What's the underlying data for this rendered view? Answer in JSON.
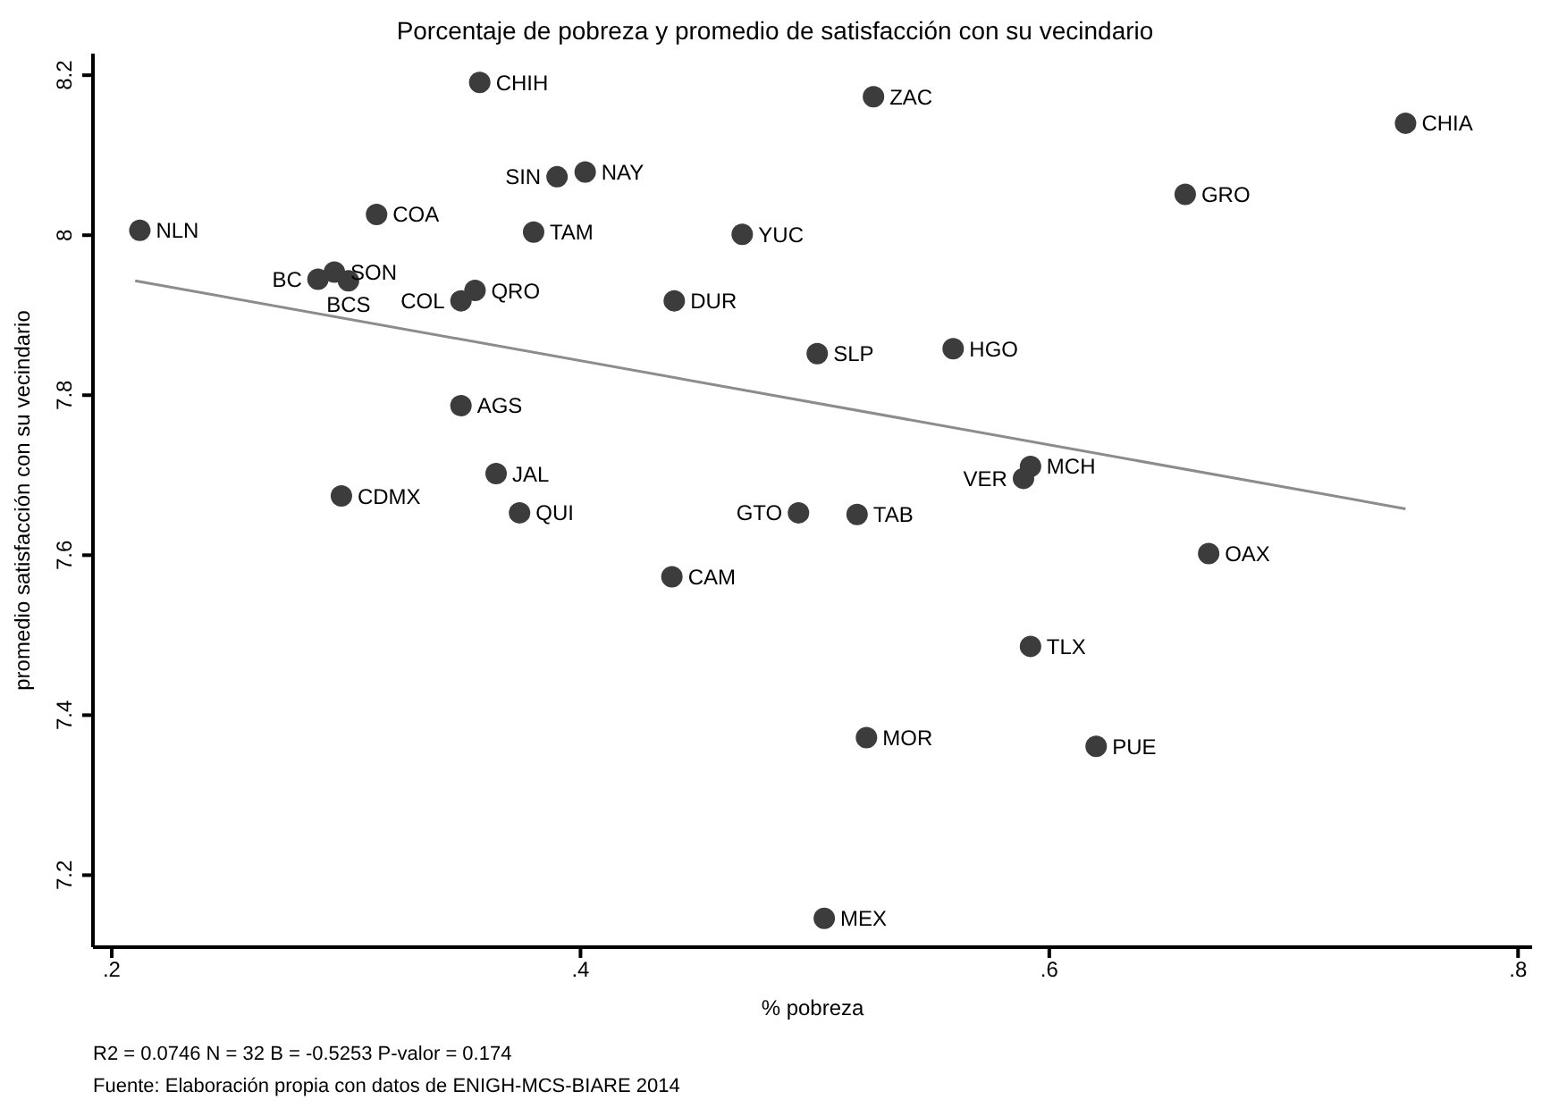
{
  "chart_data": {
    "type": "scatter",
    "title": "Porcentaje de pobreza y promedio de satisfacción con su vecindario",
    "xlabel": "% pobreza",
    "ylabel": "promedio satisfacción con su vecindario",
    "xlim": [
      0.192,
      0.806
    ],
    "xticks": [
      {
        "value": 0.2,
        "label": ".2"
      },
      {
        "value": 0.4,
        "label": ".4"
      },
      {
        "value": 0.6,
        "label": ".6"
      },
      {
        "value": 0.8,
        "label": ".8"
      }
    ],
    "ylim": [
      7.11,
      8.227
    ],
    "yticks": [
      7.2,
      7.4,
      7.6,
      7.8,
      8,
      8.2
    ],
    "grid": false,
    "legend": false,
    "series": [
      {
        "marker": "circle",
        "color": "#3c3c3c",
        "x": [
          0.357,
          0.525,
          0.752,
          0.402,
          0.39,
          0.658,
          0.212,
          0.313,
          0.38,
          0.469,
          0.295,
          0.288,
          0.301,
          0.355,
          0.349,
          0.44,
          0.501,
          0.559,
          0.349,
          0.364,
          0.592,
          0.589,
          0.298,
          0.374,
          0.493,
          0.518,
          0.668,
          0.439,
          0.592,
          0.522,
          0.62,
          0.504
        ],
        "values": [
          8.191,
          8.173,
          8.14,
          8.079,
          8.073,
          8.051,
          8.006,
          8.026,
          8.004,
          8.001,
          7.954,
          7.945,
          7.943,
          7.931,
          7.918,
          7.918,
          7.852,
          7.858,
          7.787,
          7.702,
          7.711,
          7.696,
          7.674,
          7.653,
          7.653,
          7.651,
          7.602,
          7.573,
          7.486,
          7.372,
          7.361,
          7.146
        ]
      },
      {
        "type": "line",
        "marker": "none",
        "color": "#8c8c8c",
        "x": [
          0.21,
          0.752
        ],
        "values": [
          7.943,
          7.658
        ]
      }
    ],
    "annotations": [
      {
        "text": "CHIH",
        "x": 0.357,
        "y": 8.191
      },
      {
        "text": "ZAC",
        "x": 0.525,
        "y": 8.173
      },
      {
        "text": "CHIA",
        "x": 0.752,
        "y": 8.14
      },
      {
        "text": "NAY",
        "x": 0.402,
        "y": 8.079
      },
      {
        "text": "SIN",
        "x": 0.39,
        "y": 8.073
      },
      {
        "text": "GRO",
        "x": 0.658,
        "y": 8.051
      },
      {
        "text": "NLN",
        "x": 0.212,
        "y": 8.006
      },
      {
        "text": "COA",
        "x": 0.313,
        "y": 8.026
      },
      {
        "text": "TAM",
        "x": 0.38,
        "y": 8.004
      },
      {
        "text": "YUC",
        "x": 0.469,
        "y": 8.001
      },
      {
        "text": "SON",
        "x": 0.295,
        "y": 7.954
      },
      {
        "text": "BC",
        "x": 0.288,
        "y": 7.945
      },
      {
        "text": "BCS",
        "x": 0.301,
        "y": 7.943
      },
      {
        "text": "QRO",
        "x": 0.355,
        "y": 7.931
      },
      {
        "text": "COL",
        "x": 0.349,
        "y": 7.918
      },
      {
        "text": "DUR",
        "x": 0.44,
        "y": 7.918
      },
      {
        "text": "SLP",
        "x": 0.501,
        "y": 7.852
      },
      {
        "text": "HGO",
        "x": 0.559,
        "y": 7.858
      },
      {
        "text": "AGS",
        "x": 0.349,
        "y": 7.787
      },
      {
        "text": "JAL",
        "x": 0.364,
        "y": 7.702
      },
      {
        "text": "MCH",
        "x": 0.592,
        "y": 7.711
      },
      {
        "text": "VER",
        "x": 0.589,
        "y": 7.696
      },
      {
        "text": "CDMX",
        "x": 0.298,
        "y": 7.674
      },
      {
        "text": "QUI",
        "x": 0.374,
        "y": 7.653
      },
      {
        "text": "GTO",
        "x": 0.493,
        "y": 7.653
      },
      {
        "text": "TAB",
        "x": 0.518,
        "y": 7.651
      },
      {
        "text": "OAX",
        "x": 0.668,
        "y": 7.602
      },
      {
        "text": "CAM",
        "x": 0.439,
        "y": 7.573
      },
      {
        "text": "TLX",
        "x": 0.592,
        "y": 7.486
      },
      {
        "text": "MOR",
        "x": 0.522,
        "y": 7.372
      },
      {
        "text": "PUE",
        "x": 0.62,
        "y": 7.361
      },
      {
        "text": "MEX",
        "x": 0.504,
        "y": 7.146
      },
      "R2 = 0.0746 N = 32 B = -0.5253 P-valor = 0.174",
      "Fuente: Elaboración propia con datos de ENIGH-MCS-BIARE 2014"
    ]
  }
}
